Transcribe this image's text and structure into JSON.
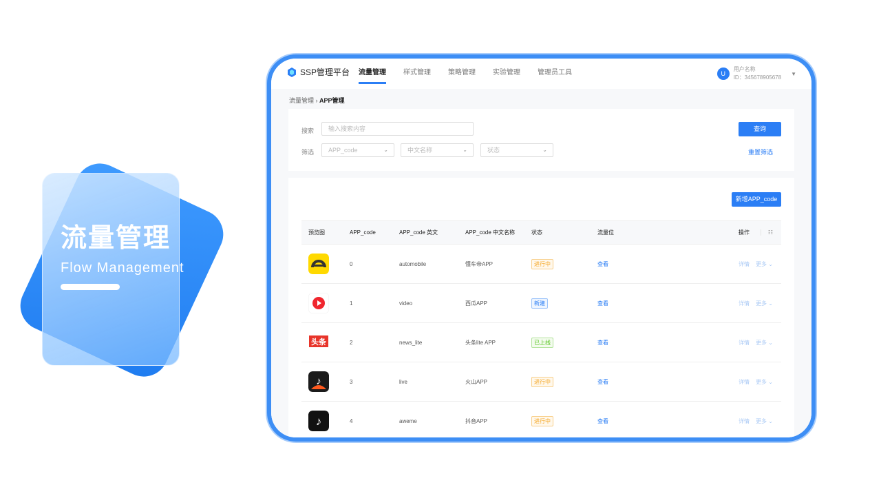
{
  "promo": {
    "title_cn": "流量管理",
    "title_en": "Flow Management"
  },
  "header": {
    "logo": "SSP管理平台",
    "nav": [
      "流量管理",
      "样式管理",
      "策略管理",
      "实验管理",
      "管理员工具"
    ],
    "active_nav": 0,
    "user": {
      "avatar": "U",
      "name": "用户名称",
      "id": "ID：345678905678"
    }
  },
  "breadcrumb": {
    "parent": "流量管理",
    "sep": "›",
    "current": "APP管理"
  },
  "filter": {
    "search_label": "搜索",
    "search_placeholder": "输入搜索内容",
    "filter_label": "筛选",
    "selects": [
      "APP_code",
      "中文名称",
      "状态"
    ],
    "query_button": "查询",
    "reset_link": "重置筛选"
  },
  "table": {
    "add_button": "新增APP_code",
    "columns": [
      "预览图",
      "APP_code",
      "APP_code 英文",
      "APP_code 中文名称",
      "状态",
      "流量位",
      "操作"
    ],
    "rows": [
      {
        "icon": "car-app-icon",
        "code": "0",
        "en": "automobile",
        "cn": "懂车帝APP",
        "status": "进行中",
        "status_type": "run",
        "traffic": "查看",
        "detail": "详情",
        "more": "更多"
      },
      {
        "icon": "video-app-icon",
        "code": "1",
        "en": "video",
        "cn": "西瓜APP",
        "status": "新建",
        "status_type": "new",
        "traffic": "查看",
        "detail": "详情",
        "more": "更多"
      },
      {
        "icon": "news-app-icon",
        "code": "2",
        "en": "news_lite",
        "cn": "头条lite APP",
        "status": "已上线",
        "status_type": "online",
        "traffic": "查看",
        "detail": "详情",
        "more": "更多"
      },
      {
        "icon": "huoshan-app-icon",
        "code": "3",
        "en": "live",
        "cn": "火山APP",
        "status": "进行中",
        "status_type": "run",
        "traffic": "查看",
        "detail": "详情",
        "more": "更多"
      },
      {
        "icon": "douyin-app-icon",
        "code": "4",
        "en": "aweme",
        "cn": "抖音APP",
        "status": "进行中",
        "status_type": "run",
        "traffic": "查看",
        "detail": "详情",
        "more": "更多"
      }
    ],
    "news_icon_text": "头条"
  },
  "colors": {
    "accent": "#2b7ef5",
    "frame": "#3d8ef5",
    "run": "#f5a623",
    "new": "#2b7ef5",
    "online": "#52c41a"
  }
}
